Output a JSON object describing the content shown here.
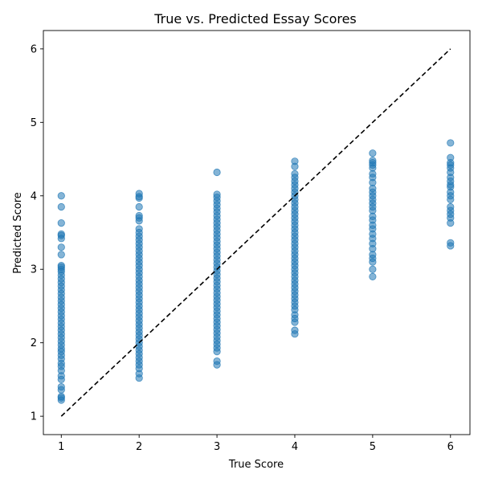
{
  "chart_data": {
    "type": "scatter",
    "title": "True vs. Predicted Essay Scores",
    "xlabel": "True Score",
    "ylabel": "Predicted Score",
    "xlim": [
      0.77,
      6.25
    ],
    "ylim": [
      0.75,
      6.25
    ],
    "x_ticks": [
      1,
      2,
      3,
      4,
      5,
      6
    ],
    "y_ticks": [
      1,
      2,
      3,
      4,
      5,
      6
    ],
    "grid": false,
    "marker_color": "#1f77b4",
    "marker_alpha": 0.55,
    "reference_line": {
      "style": "dashed",
      "color": "#000000",
      "from": [
        1,
        1
      ],
      "to": [
        6,
        6
      ]
    },
    "points_by_true_score": [
      {
        "x": 1,
        "y": [
          1.22,
          1.25,
          1.27,
          1.36,
          1.4,
          1.5,
          1.55,
          1.62,
          1.68,
          1.72,
          1.78,
          1.83,
          1.88,
          1.92,
          1.97,
          2.02,
          2.07,
          2.12,
          2.17,
          2.22,
          2.27,
          2.32,
          2.37,
          2.42,
          2.47,
          2.52,
          2.57,
          2.62,
          2.67,
          2.72,
          2.77,
          2.82,
          2.87,
          2.92,
          2.97,
          3.0,
          3.03,
          3.05,
          3.2,
          3.3,
          3.42,
          3.46,
          3.48,
          3.63,
          3.85,
          4.0
        ]
      },
      {
        "x": 2,
        "y": [
          1.52,
          1.58,
          1.65,
          1.7,
          1.75,
          1.8,
          1.85,
          1.9,
          1.95,
          2.0,
          2.05,
          2.1,
          2.15,
          2.2,
          2.25,
          2.3,
          2.35,
          2.4,
          2.45,
          2.5,
          2.55,
          2.6,
          2.65,
          2.7,
          2.75,
          2.8,
          2.85,
          2.9,
          2.95,
          3.0,
          3.05,
          3.1,
          3.15,
          3.2,
          3.25,
          3.3,
          3.35,
          3.4,
          3.45,
          3.5,
          3.55,
          3.66,
          3.7,
          3.73,
          3.85,
          3.97,
          3.99,
          4.03
        ]
      },
      {
        "x": 3,
        "y": [
          1.7,
          1.75,
          1.88,
          1.93,
          1.98,
          2.03,
          2.08,
          2.13,
          2.18,
          2.23,
          2.28,
          2.33,
          2.38,
          2.43,
          2.48,
          2.53,
          2.58,
          2.63,
          2.68,
          2.73,
          2.78,
          2.83,
          2.88,
          2.93,
          2.98,
          3.03,
          3.08,
          3.13,
          3.18,
          3.23,
          3.28,
          3.33,
          3.38,
          3.43,
          3.48,
          3.53,
          3.58,
          3.63,
          3.68,
          3.73,
          3.78,
          3.83,
          3.88,
          3.93,
          3.98,
          4.02,
          4.32
        ]
      },
      {
        "x": 4,
        "y": [
          2.12,
          2.17,
          2.28,
          2.33,
          2.38,
          2.45,
          2.5,
          2.55,
          2.6,
          2.65,
          2.7,
          2.75,
          2.8,
          2.85,
          2.9,
          2.95,
          3.0,
          3.05,
          3.1,
          3.15,
          3.2,
          3.25,
          3.3,
          3.35,
          3.4,
          3.45,
          3.5,
          3.55,
          3.6,
          3.65,
          3.7,
          3.75,
          3.8,
          3.85,
          3.9,
          3.95,
          4.0,
          4.05,
          4.1,
          4.15,
          4.2,
          4.25,
          4.3,
          4.4,
          4.47
        ]
      },
      {
        "x": 5,
        "y": [
          2.9,
          3.0,
          3.1,
          3.15,
          3.2,
          3.28,
          3.35,
          3.42,
          3.48,
          3.55,
          3.6,
          3.67,
          3.72,
          3.8,
          3.85,
          3.9,
          3.95,
          4.0,
          4.05,
          4.1,
          4.18,
          4.25,
          4.3,
          4.38,
          4.42,
          4.45,
          4.48,
          4.58
        ]
      },
      {
        "x": 6,
        "y": [
          3.32,
          3.36,
          3.63,
          3.7,
          3.75,
          3.8,
          3.85,
          3.95,
          4.0,
          4.05,
          4.12,
          4.15,
          4.2,
          4.25,
          4.32,
          4.38,
          4.42,
          4.45,
          4.52,
          4.72
        ]
      }
    ]
  }
}
